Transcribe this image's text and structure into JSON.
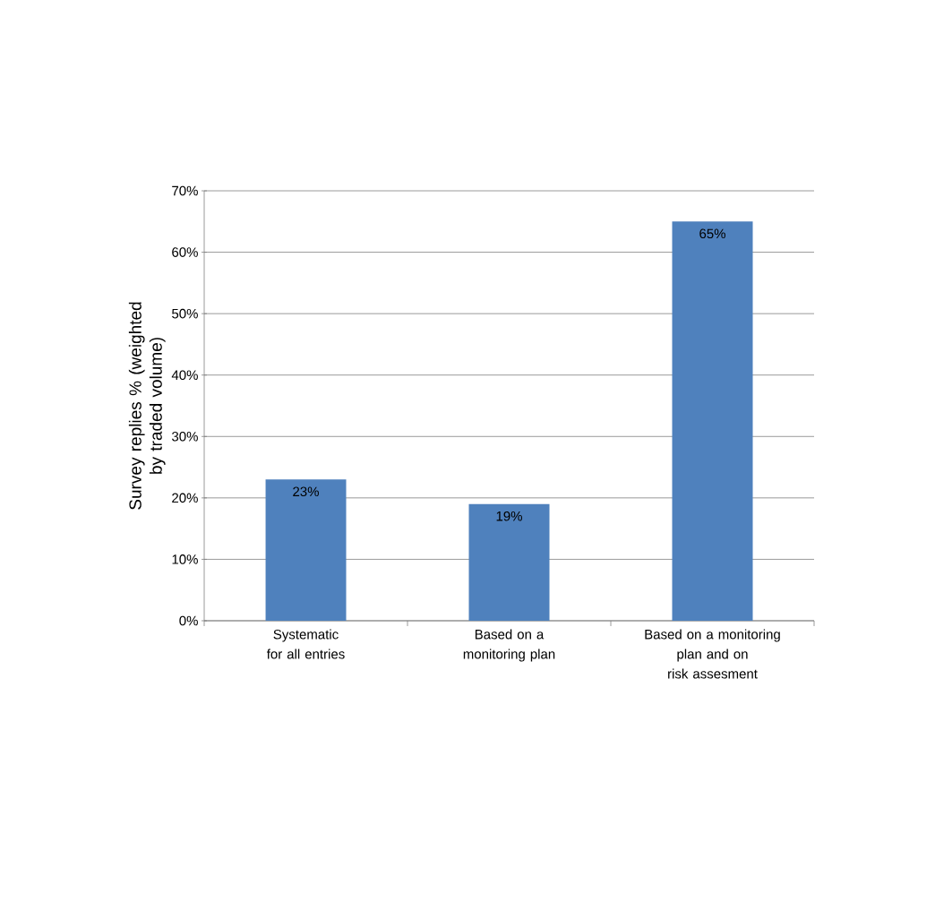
{
  "chart_data": {
    "type": "bar",
    "ylabel": "Survey replies % (weighted by traded volume)",
    "categories": [
      "Systematic for all entries",
      "Based on a monitoring plan",
      "Based on a monitoring plan and on risk assesment"
    ],
    "values": [
      23,
      19,
      65
    ],
    "color": "#4f81bd",
    "value_labels": [
      "23%",
      "19%",
      "65%"
    ],
    "ylim": [
      0,
      70
    ],
    "yticks": [
      {
        "value": 0,
        "label": "0%"
      },
      {
        "value": 10,
        "label": "10%"
      },
      {
        "value": 20,
        "label": "20%"
      },
      {
        "value": 30,
        "label": "30%"
      },
      {
        "value": 40,
        "label": "40%"
      },
      {
        "value": 50,
        "label": "50%"
      },
      {
        "value": 60,
        "label": "60%"
      },
      {
        "value": 70,
        "label": "70%"
      }
    ],
    "grid": "y"
  }
}
